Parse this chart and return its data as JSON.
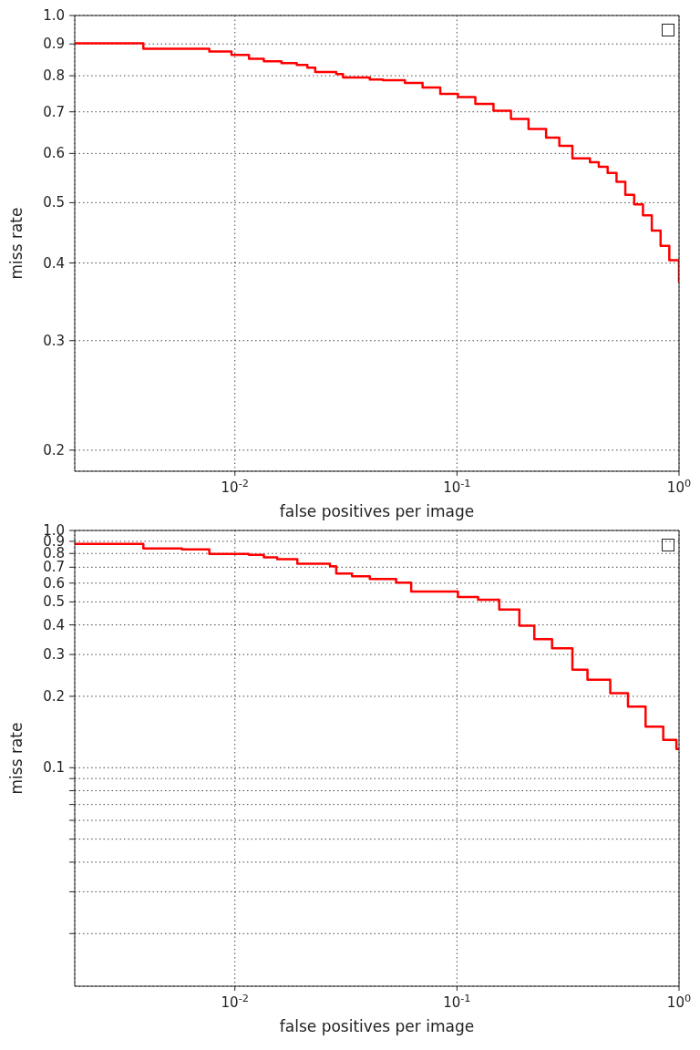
{
  "chart_data": [
    {
      "type": "step",
      "xlabel": "false positives per image",
      "ylabel": "miss rate",
      "log": "xy",
      "grid": true,
      "marker": "none",
      "line_style": "solid",
      "xlim": [
        0.0019,
        1
      ],
      "xticks": [
        {
          "value": 0.01,
          "label": "10$^{-2}$"
        },
        {
          "value": 0.1,
          "label": "10$^{-1}$"
        },
        {
          "value": 1,
          "label": "10$^{0}$"
        }
      ],
      "ylim": [
        0.185,
        1
      ],
      "yticks": [
        0.2,
        0.3,
        0.4,
        0.5,
        0.6,
        0.7,
        0.8,
        0.9,
        {
          "value": 1,
          "label": "1.0"
        }
      ],
      "series": [
        {
          "color": "#ff0000",
          "x": [
            0.0019,
            0.00387,
            0.00767,
            0.00965,
            0.01157,
            0.0135,
            0.0162,
            0.019,
            0.0212,
            0.023,
            0.0286,
            0.0307,
            0.0405,
            0.0464,
            0.0583,
            0.07,
            0.0841,
            0.101,
            0.121,
            0.146,
            0.175,
            0.21,
            0.252,
            0.289,
            0.331,
            0.397,
            0.435,
            0.477,
            0.523,
            0.573,
            0.628,
            0.688,
            0.754,
            0.826,
            0.904,
            1
          ],
          "values": [
            0.902,
            0.884,
            0.875,
            0.864,
            0.852,
            0.844,
            0.838,
            0.833,
            0.824,
            0.811,
            0.805,
            0.795,
            0.789,
            0.787,
            0.779,
            0.766,
            0.748,
            0.739,
            0.721,
            0.703,
            0.682,
            0.657,
            0.636,
            0.617,
            0.589,
            0.581,
            0.571,
            0.558,
            0.54,
            0.515,
            0.497,
            0.477,
            0.451,
            0.426,
            0.404,
            0.372
          ]
        }
      ]
    },
    {
      "type": "step",
      "xlabel": "false positives per image",
      "ylabel": "miss rate",
      "log": "xy",
      "grid": true,
      "marker": "none",
      "line_style": "solid",
      "xlim": [
        0.0019,
        1
      ],
      "xticks": [
        {
          "value": 0.01,
          "label": "10$^{-2}$"
        },
        {
          "value": 0.1,
          "label": "10$^{-1}$"
        },
        {
          "value": 1,
          "label": "10$^{0}$"
        }
      ],
      "ylim": [
        0.012,
        1
      ],
      "yticks": [
        {
          "value": 0.02,
          "label": null
        },
        {
          "value": 0.03,
          "label": null
        },
        {
          "value": 0.04,
          "label": null
        },
        {
          "value": 0.05,
          "label": null
        },
        {
          "value": 0.06,
          "label": null
        },
        {
          "value": 0.07,
          "label": null
        },
        {
          "value": 0.08,
          "label": null
        },
        {
          "value": 0.09,
          "label": null
        },
        0.1,
        0.2,
        0.3,
        0.4,
        0.5,
        0.6,
        0.7,
        0.8,
        0.9,
        {
          "value": 1,
          "label": "1.0"
        }
      ],
      "series": [
        {
          "color": "#ff0000",
          "x": [
            0.0019,
            0.00387,
            0.00578,
            0.00767,
            0.01157,
            0.0135,
            0.0155,
            0.0191,
            0.0268,
            0.0286,
            0.0337,
            0.0405,
            0.0532,
            0.0622,
            0.101,
            0.1245,
            0.155,
            0.191,
            0.223,
            0.268,
            0.331,
            0.387,
            0.49,
            0.589,
            0.707,
            0.849,
            0.973,
            1
          ],
          "values": [
            0.877,
            0.84,
            0.833,
            0.797,
            0.79,
            0.77,
            0.756,
            0.724,
            0.706,
            0.658,
            0.641,
            0.624,
            0.603,
            0.553,
            0.524,
            0.511,
            0.464,
            0.397,
            0.348,
            0.319,
            0.259,
            0.235,
            0.206,
            0.181,
            0.149,
            0.131,
            0.12,
            0.119
          ]
        }
      ]
    }
  ]
}
